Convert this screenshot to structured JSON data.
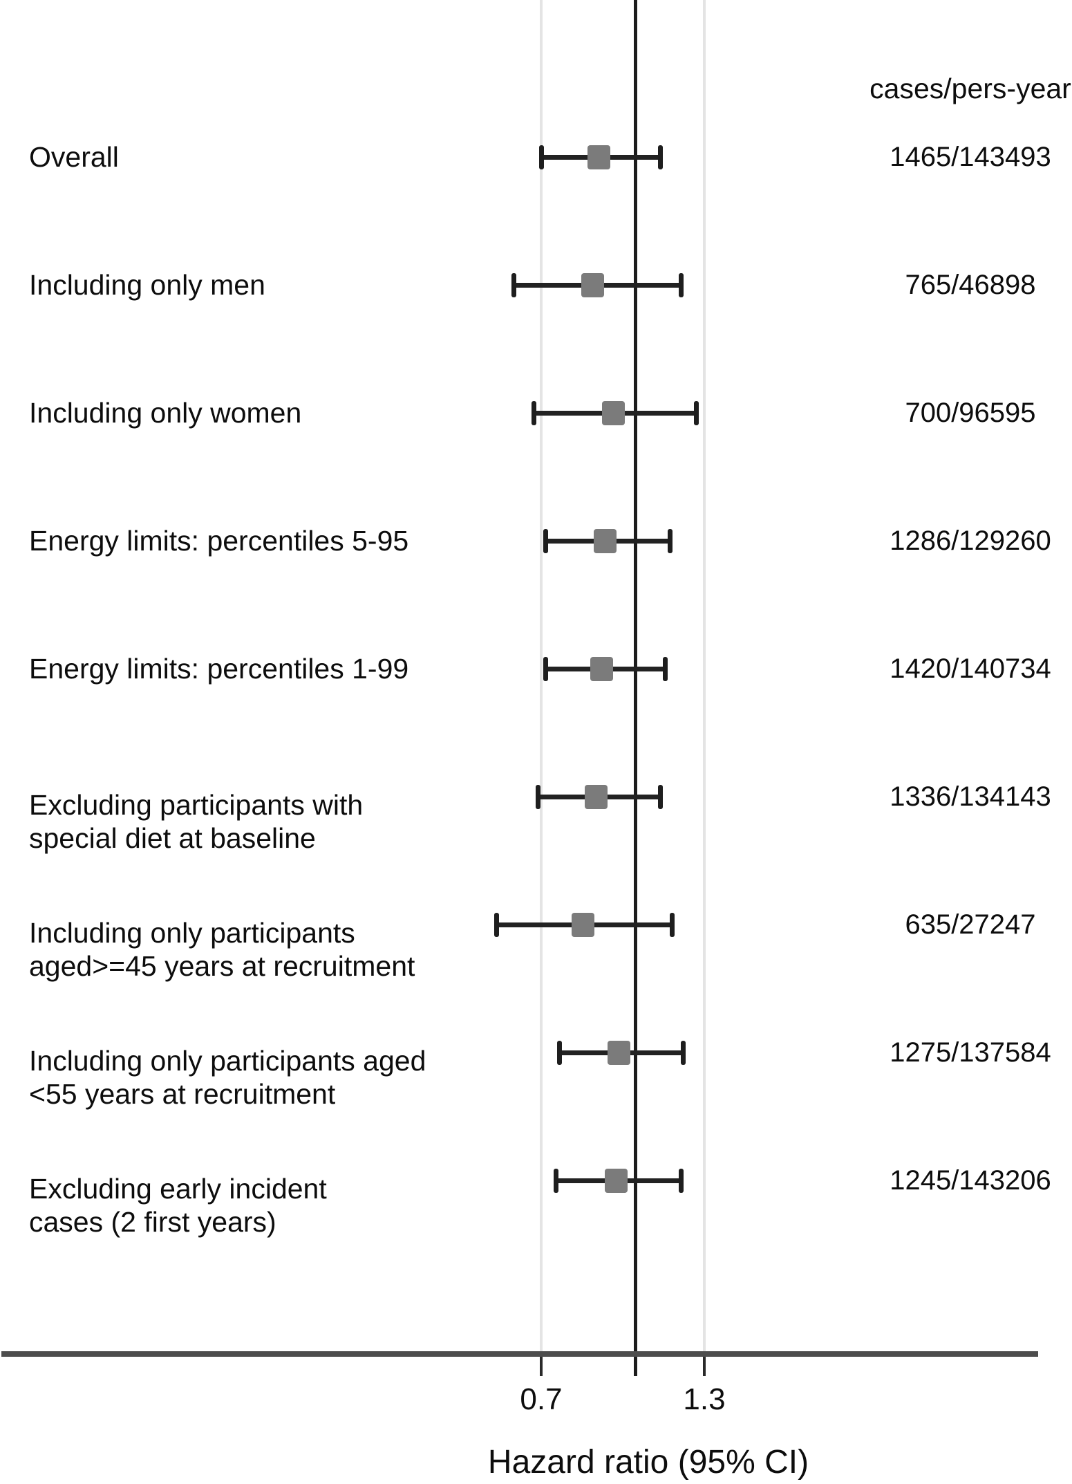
{
  "figure": {
    "cases_column_header": "cases/pers-year"
  },
  "axis": {
    "tick_labels": [
      "0.7",
      "1.3"
    ],
    "title": "Hazard ratio (95% CI)"
  },
  "colors": {
    "marker": "#7b7b7b",
    "ci_line": "#222222",
    "reference_line": "#1c1c1c",
    "gridline": "#e4e4e4",
    "axis_line": "#4d4d4d"
  },
  "chart_data": {
    "type": "forest",
    "title": "",
    "xlabel": "Hazard ratio (95% CI)",
    "x_scale": "log",
    "x_tick_values": [
      0.7,
      1.3
    ],
    "reference_line_x": 1.0,
    "right_column_header": "cases/pers-year",
    "gridlines_at": [
      0.7,
      1.3
    ],
    "rows": [
      {
        "label_lines": [
          "Overall"
        ],
        "hr": 0.87,
        "ci_low": 0.7,
        "ci_high": 1.1,
        "cases_pers_year": "1465/143493"
      },
      {
        "label_lines": [
          "Including only men"
        ],
        "hr": 0.85,
        "ci_low": 0.63,
        "ci_high": 1.19,
        "cases_pers_year": "765/46898"
      },
      {
        "label_lines": [
          "Including only women"
        ],
        "hr": 0.92,
        "ci_low": 0.68,
        "ci_high": 1.26,
        "cases_pers_year": "700/96595"
      },
      {
        "label_lines": [
          "Energy limits: percentiles 5-95"
        ],
        "hr": 0.89,
        "ci_low": 0.71,
        "ci_high": 1.14,
        "cases_pers_year": "1286/129260"
      },
      {
        "label_lines": [
          "Energy limits: percentiles 1-99"
        ],
        "hr": 0.88,
        "ci_low": 0.71,
        "ci_high": 1.12,
        "cases_pers_year": "1420/140734"
      },
      {
        "label_lines": [
          "Excluding participants with",
          "special diet at baseline"
        ],
        "hr": 0.86,
        "ci_low": 0.69,
        "ci_high": 1.1,
        "cases_pers_year": "1336/134143"
      },
      {
        "label_lines": [
          "Including only participants",
          "aged>=45 years at recruitment"
        ],
        "hr": 0.82,
        "ci_low": 0.59,
        "ci_high": 1.15,
        "cases_pers_year": "635/27247"
      },
      {
        "label_lines": [
          "Including only participants aged",
          "<55 years at recruitment"
        ],
        "hr": 0.94,
        "ci_low": 0.75,
        "ci_high": 1.2,
        "cases_pers_year": "1275/137584"
      },
      {
        "label_lines": [
          "Excluding early incident",
          "cases (2 first years)"
        ],
        "hr": 0.93,
        "ci_low": 0.74,
        "ci_high": 1.19,
        "cases_pers_year": "1245/143206"
      }
    ]
  }
}
